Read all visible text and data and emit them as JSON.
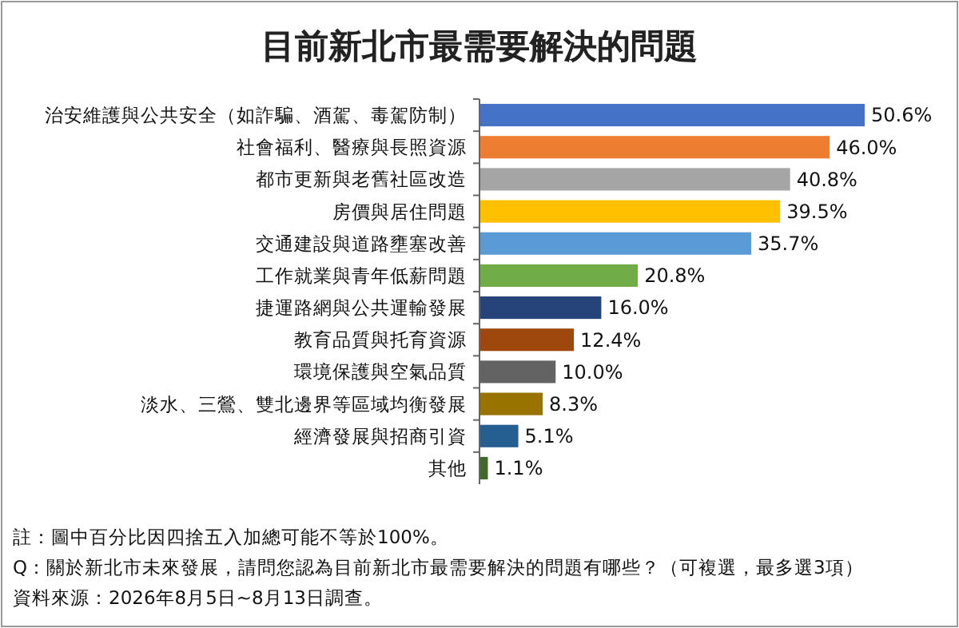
{
  "chart_data": {
    "type": "bar",
    "orientation": "horizontal",
    "title": "目前新北市最需要解決的問題",
    "categories": [
      "治安維護與公共安全（如詐騙、酒駕、毒駕防制）",
      "社會福利、醫療與長照資源",
      "都市更新與老舊社區改造",
      "房價與居住問題",
      "交通建設與道路壅塞改善",
      "工作就業與青年低薪問題",
      "捷運路網與公共運輸發展",
      "教育品質與托育資源",
      "環境保護與空氣品質",
      "淡水、三鶯、雙北邊界等區域均衡發展",
      "經濟發展與招商引資",
      "其他"
    ],
    "values": [
      50.6,
      46.0,
      40.8,
      39.5,
      35.7,
      20.8,
      16.0,
      12.4,
      10.0,
      8.3,
      5.1,
      1.1
    ],
    "value_labels": [
      "50.6%",
      "46.0%",
      "40.8%",
      "39.5%",
      "35.7%",
      "20.8%",
      "16.0%",
      "12.4%",
      "10.0%",
      "8.3%",
      "5.1%",
      "1.1%"
    ],
    "colors": [
      "#4472c4",
      "#ed7d31",
      "#a5a5a5",
      "#ffc000",
      "#5b9bd5",
      "#70ad47",
      "#264478",
      "#9e480e",
      "#636363",
      "#997300",
      "#255e91",
      "#43682b"
    ],
    "relative": false,
    "annotations": [
      "註：圖中百分比因四捨五入加總可能不等於100%。",
      "Q：關於新北市未來發展，請問您認為目前新北市最需要解決的問題有哪些？（可複選，最多選3項）",
      "資料來源：2026年8月5日~8月13日調查。"
    ]
  }
}
